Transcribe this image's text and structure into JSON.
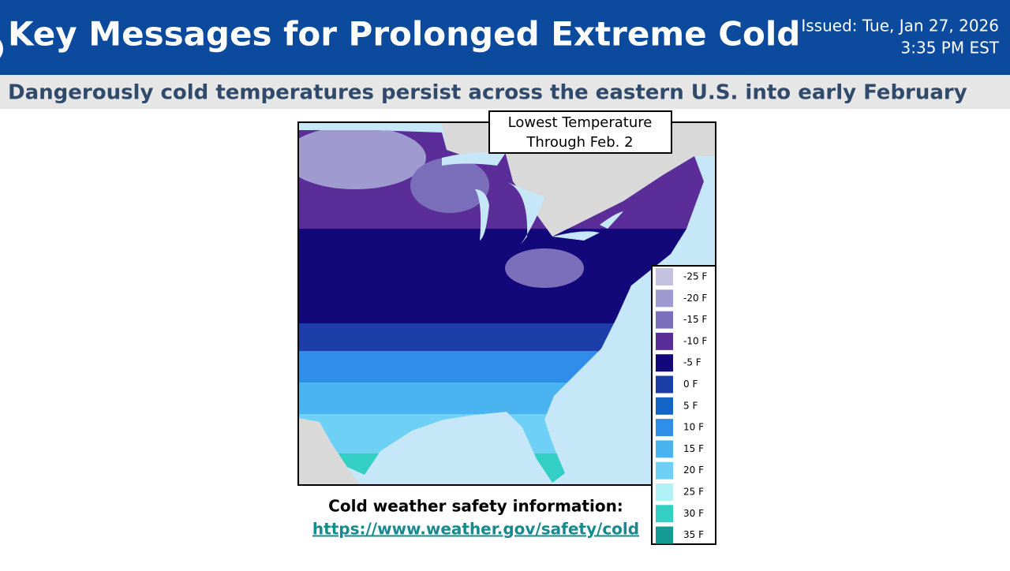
{
  "header": {
    "title": "Key Messages for Prolonged Extreme Cold",
    "issued": [
      "Issued: Tue, Jan 27, 2026",
      "3:35 PM EST"
    ]
  },
  "subtitle": "Dangerously cold temperatures persist across the eastern U.S. into early February",
  "map": {
    "title_lines": [
      "Lowest Temperature",
      "Through Feb. 2"
    ]
  },
  "legend": {
    "items": [
      {
        "label": "-25 F",
        "color": "#c4c2e0"
      },
      {
        "label": "-20 F",
        "color": "#9f9bd0"
      },
      {
        "label": "-15 F",
        "color": "#7b6fbc"
      },
      {
        "label": "-10 F",
        "color": "#5a2d98"
      },
      {
        "label": "-5 F",
        "color": "#12087a"
      },
      {
        "label": "0 F",
        "color": "#1c3ea8"
      },
      {
        "label": "5 F",
        "color": "#1565c8"
      },
      {
        "label": "10 F",
        "color": "#2f8fe8"
      },
      {
        "label": "15 F",
        "color": "#4ab4f0"
      },
      {
        "label": "20 F",
        "color": "#6ed0f5"
      },
      {
        "label": "25 F",
        "color": "#b0f2f5"
      },
      {
        "label": "30 F",
        "color": "#33cfc4"
      },
      {
        "label": "35 F",
        "color": "#149c94"
      }
    ]
  },
  "footer": {
    "text": "Cold weather safety information:",
    "link": "https://www.weather.gov/safety/cold"
  }
}
